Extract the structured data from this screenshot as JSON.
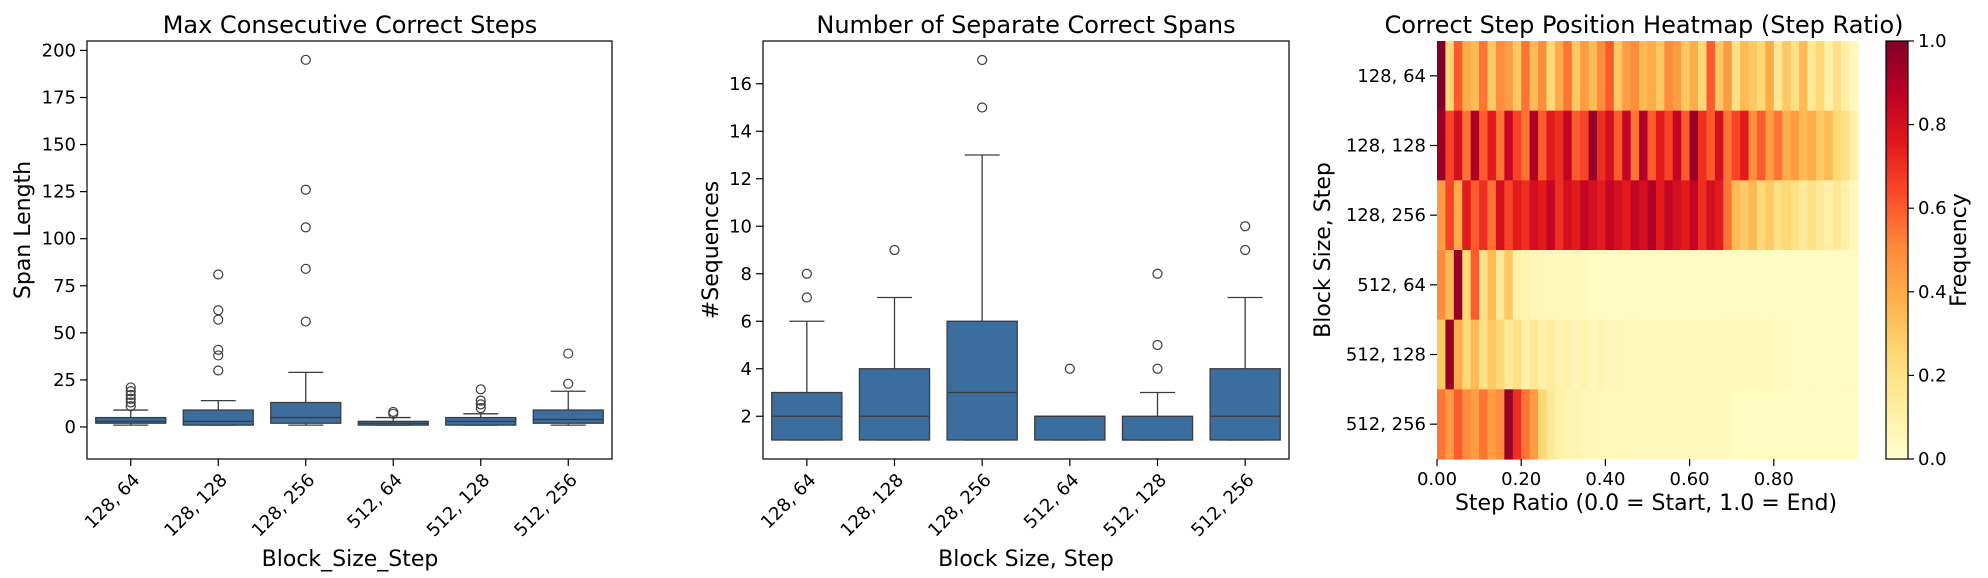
{
  "chart_data": [
    {
      "type": "box",
      "title": "Max Consecutive Correct Steps",
      "xlabel": "Block_Size_Step",
      "ylabel": "Span Length",
      "ylim": [
        -17,
        205
      ],
      "yticks": [
        0,
        25,
        50,
        75,
        100,
        125,
        150,
        175,
        200
      ],
      "categories": [
        "128, 64",
        "128, 128",
        "128, 256",
        "512, 64",
        "512, 128",
        "512, 256"
      ],
      "color": "#3b6e9f",
      "boxes": [
        {
          "whislo": 1,
          "q1": 2,
          "med": 3,
          "q3": 5,
          "whishi": 9,
          "fliers": [
            11,
            13,
            15,
            17,
            19,
            21
          ]
        },
        {
          "whislo": 1,
          "q1": 1,
          "med": 3,
          "q3": 9,
          "whishi": 14,
          "fliers": [
            30,
            38,
            41,
            57,
            62,
            81
          ]
        },
        {
          "whislo": 1,
          "q1": 2,
          "med": 5,
          "q3": 13,
          "whishi": 29,
          "fliers": [
            56,
            84,
            106,
            126,
            195
          ]
        },
        {
          "whislo": 1,
          "q1": 1,
          "med": 2,
          "q3": 3,
          "whishi": 5,
          "fliers": [
            7,
            8
          ]
        },
        {
          "whislo": 1,
          "q1": 1,
          "med": 3,
          "q3": 5,
          "whishi": 7,
          "fliers": [
            10,
            12,
            14,
            20
          ]
        },
        {
          "whislo": 1,
          "q1": 2,
          "med": 4,
          "q3": 9,
          "whishi": 19,
          "fliers": [
            23,
            39
          ]
        }
      ]
    },
    {
      "type": "box",
      "title": "Number of Separate Correct Spans",
      "xlabel": "Block Size, Step",
      "ylabel": "#Sequences",
      "ylim": [
        0.2,
        17.8
      ],
      "yticks": [
        2,
        4,
        6,
        8,
        10,
        12,
        14,
        16
      ],
      "categories": [
        "128, 64",
        "128, 128",
        "128, 256",
        "512, 64",
        "512, 128",
        "512, 256"
      ],
      "color": "#3b6e9f",
      "boxes": [
        {
          "whislo": 1,
          "q1": 1,
          "med": 2,
          "q3": 3,
          "whishi": 6,
          "fliers": [
            7,
            8
          ]
        },
        {
          "whislo": 1,
          "q1": 1,
          "med": 2,
          "q3": 4,
          "whishi": 7,
          "fliers": [
            9
          ]
        },
        {
          "whislo": 1,
          "q1": 1,
          "med": 3,
          "q3": 6,
          "whishi": 13,
          "fliers": [
            15,
            17
          ]
        },
        {
          "whislo": 1,
          "q1": 1,
          "med": 2,
          "q3": 2,
          "whishi": 2,
          "fliers": [
            4
          ]
        },
        {
          "whislo": 1,
          "q1": 1,
          "med": 1,
          "q3": 2,
          "whishi": 3,
          "fliers": [
            4,
            5,
            8
          ]
        },
        {
          "whislo": 1,
          "q1": 1,
          "med": 2,
          "q3": 4,
          "whishi": 7,
          "fliers": [
            9,
            10
          ]
        }
      ]
    },
    {
      "type": "heatmap",
      "title": "Correct Step Position Heatmap (Step Ratio)",
      "xlabel": "Step Ratio (0.0 = Start, 1.0 = End)",
      "ylabel": "Block Size, Step",
      "rows": [
        "128, 64",
        "128, 128",
        "128, 256",
        "512, 64",
        "512, 128",
        "512, 256"
      ],
      "xticks": [
        "0.00",
        "0.20",
        "0.40",
        "0.60",
        "0.80"
      ],
      "colorbar_label": "Frequency",
      "colorbar_ticks": [
        "0.0",
        "0.2",
        "0.4",
        "0.6",
        "0.8",
        "1.0"
      ],
      "colormap": "YlOrRd",
      "ncols": 50,
      "values": [
        [
          1.0,
          0.25,
          0.6,
          0.4,
          0.35,
          0.55,
          0.3,
          0.5,
          0.45,
          0.3,
          0.55,
          0.35,
          0.5,
          0.25,
          0.4,
          0.55,
          0.3,
          0.45,
          0.35,
          0.5,
          0.6,
          0.3,
          0.45,
          0.5,
          0.35,
          0.4,
          0.3,
          0.5,
          0.45,
          0.3,
          0.4,
          0.25,
          0.6,
          0.3,
          0.45,
          0.2,
          0.35,
          0.3,
          0.25,
          0.4,
          0.15,
          0.3,
          0.2,
          0.35,
          0.15,
          0.25,
          0.1,
          0.2,
          0.1,
          0.05
        ],
        [
          0.95,
          0.65,
          0.8,
          0.55,
          0.9,
          0.6,
          0.75,
          0.55,
          0.85,
          0.65,
          0.55,
          0.9,
          0.6,
          0.75,
          0.7,
          0.85,
          0.6,
          0.65,
          0.95,
          0.7,
          0.8,
          0.6,
          0.85,
          0.55,
          0.9,
          0.6,
          0.75,
          0.65,
          0.85,
          0.6,
          0.95,
          0.7,
          0.6,
          0.8,
          0.55,
          0.65,
          0.75,
          0.5,
          0.6,
          0.45,
          0.55,
          0.4,
          0.45,
          0.35,
          0.4,
          0.3,
          0.35,
          0.25,
          0.2,
          0.1
        ],
        [
          0.45,
          0.65,
          0.4,
          0.75,
          0.6,
          0.7,
          0.55,
          0.8,
          0.65,
          0.75,
          0.7,
          0.8,
          0.75,
          0.85,
          0.7,
          0.8,
          0.75,
          0.85,
          0.8,
          0.75,
          0.85,
          0.8,
          0.75,
          0.85,
          0.8,
          0.9,
          0.75,
          0.85,
          0.8,
          0.75,
          0.85,
          0.7,
          0.8,
          0.75,
          0.55,
          0.35,
          0.3,
          0.35,
          0.25,
          0.3,
          0.2,
          0.25,
          0.2,
          0.15,
          0.2,
          0.15,
          0.1,
          0.15,
          0.1,
          0.05
        ],
        [
          0.5,
          0.35,
          0.95,
          0.25,
          0.6,
          0.2,
          0.35,
          0.15,
          0.3,
          0.1,
          0.08,
          0.06,
          0.05,
          0.05,
          0.05,
          0.04,
          0.04,
          0.04,
          0.03,
          0.03,
          0.03,
          0.03,
          0.03,
          0.03,
          0.03,
          0.03,
          0.03,
          0.03,
          0.03,
          0.03,
          0.03,
          0.03,
          0.03,
          0.03,
          0.03,
          0.03,
          0.03,
          0.03,
          0.03,
          0.03,
          0.03,
          0.03,
          0.03,
          0.03,
          0.03,
          0.03,
          0.03,
          0.03,
          0.03,
          0.03
        ],
        [
          0.3,
          0.95,
          0.4,
          0.25,
          0.35,
          0.2,
          0.3,
          0.25,
          0.15,
          0.2,
          0.1,
          0.15,
          0.1,
          0.12,
          0.08,
          0.1,
          0.06,
          0.08,
          0.05,
          0.07,
          0.05,
          0.06,
          0.05,
          0.05,
          0.04,
          0.05,
          0.04,
          0.05,
          0.04,
          0.04,
          0.04,
          0.04,
          0.04,
          0.04,
          0.04,
          0.04,
          0.04,
          0.04,
          0.04,
          0.04,
          0.03,
          0.04,
          0.03,
          0.03,
          0.03,
          0.03,
          0.03,
          0.03,
          0.03,
          0.03
        ],
        [
          0.55,
          0.45,
          0.6,
          0.5,
          0.45,
          0.55,
          0.45,
          0.5,
          0.95,
          0.7,
          0.55,
          0.45,
          0.25,
          0.15,
          0.1,
          0.08,
          0.07,
          0.06,
          0.06,
          0.05,
          0.05,
          0.05,
          0.05,
          0.04,
          0.04,
          0.04,
          0.04,
          0.04,
          0.04,
          0.04,
          0.04,
          0.04,
          0.04,
          0.04,
          0.04,
          0.03,
          0.03,
          0.03,
          0.03,
          0.03,
          0.03,
          0.03,
          0.03,
          0.03,
          0.03,
          0.03,
          0.03,
          0.03,
          0.03,
          0.03
        ]
      ]
    }
  ]
}
